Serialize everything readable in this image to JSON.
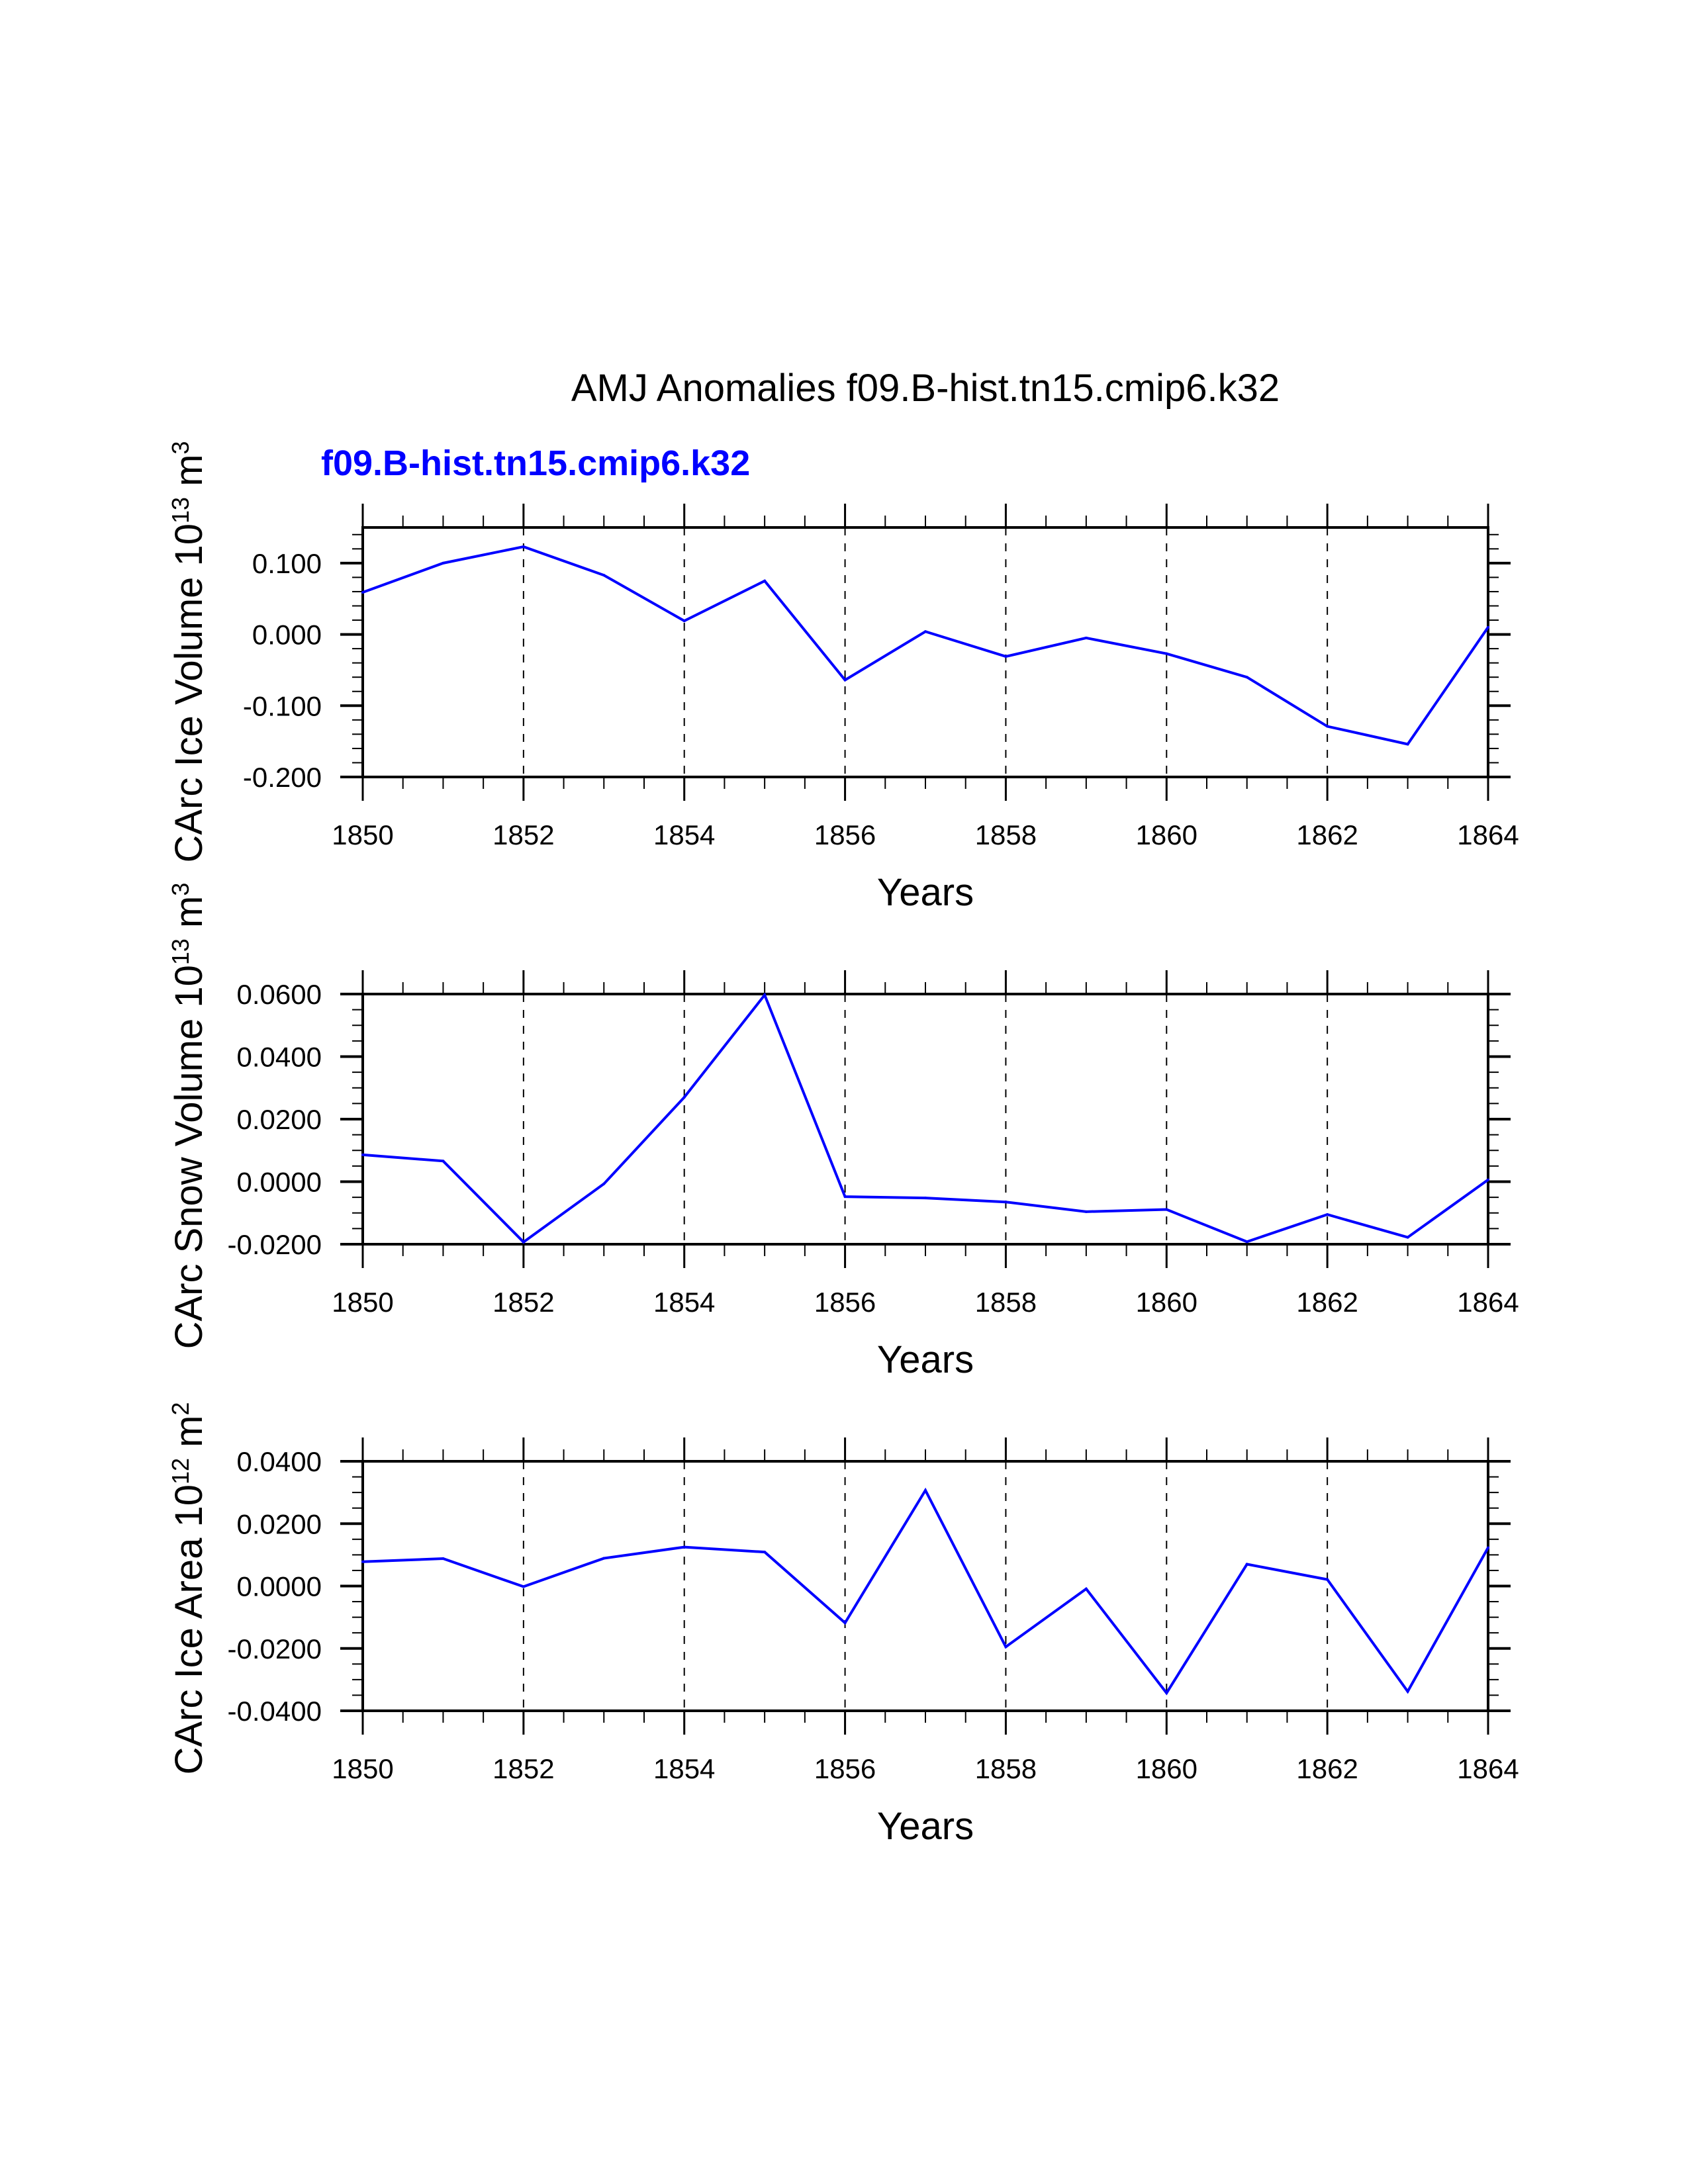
{
  "title": "AMJ Anomalies f09.B-hist.tn15.cmip6.k32",
  "subtitle": "f09.B-hist.tn15.cmip6.k32",
  "colors": {
    "series": "#0000ff",
    "subtitle": "#0000ff",
    "axis": "#000000"
  },
  "chart_data": [
    {
      "type": "line",
      "ylabel_parts": [
        "CArc Ice Volume 10",
        "13",
        " m",
        "3"
      ],
      "xlabel": "Years",
      "xlim": [
        1850,
        1864
      ],
      "ylim": [
        -0.2,
        0.15
      ],
      "xticks": [
        1850,
        1852,
        1854,
        1856,
        1858,
        1860,
        1862,
        1864
      ],
      "yticks": [
        0.1,
        0.0,
        -0.1,
        -0.2
      ],
      "ytick_labels": [
        "0.100",
        "0.000",
        "-0.100",
        "-0.200"
      ],
      "yminor_step": 0.02,
      "grid": "vertical dashed at major x ticks",
      "series": [
        {
          "name": "f09.B-hist.tn15.cmip6.k32",
          "x": [
            1850,
            1851,
            1852,
            1853,
            1854,
            1855,
            1856,
            1857,
            1858,
            1859,
            1860,
            1861,
            1862,
            1863,
            1864
          ],
          "values": [
            0.059,
            0.1,
            0.123,
            0.083,
            0.019,
            0.075,
            -0.064,
            0.004,
            -0.031,
            -0.005,
            -0.027,
            -0.06,
            -0.129,
            -0.154,
            0.01
          ]
        }
      ]
    },
    {
      "type": "line",
      "ylabel_parts": [
        "CArc Snow Volume 10",
        "13",
        " m",
        "3"
      ],
      "xlabel": "Years",
      "xlim": [
        1850,
        1864
      ],
      "ylim": [
        -0.02,
        0.06
      ],
      "xticks": [
        1850,
        1852,
        1854,
        1856,
        1858,
        1860,
        1862,
        1864
      ],
      "yticks": [
        0.06,
        0.04,
        0.02,
        0.0,
        -0.02
      ],
      "ytick_labels": [
        "0.0600",
        "0.0400",
        "0.0200",
        "0.0000",
        "-0.0200"
      ],
      "yminor_step": 0.005,
      "grid": "vertical dashed at major x ticks",
      "series": [
        {
          "name": "f09.B-hist.tn15.cmip6.k32",
          "x": [
            1850,
            1851,
            1852,
            1853,
            1854,
            1855,
            1856,
            1857,
            1858,
            1859,
            1860,
            1861,
            1862,
            1863,
            1864
          ],
          "values": [
            0.0086,
            0.0066,
            -0.0193,
            -0.0007,
            0.027,
            0.0597,
            -0.0048,
            -0.0052,
            -0.0065,
            -0.0096,
            -0.0089,
            -0.0192,
            -0.0105,
            -0.0178,
            0.0006
          ]
        }
      ]
    },
    {
      "type": "line",
      "ylabel_parts": [
        "CArc Ice Area 10",
        "12",
        " m",
        "2"
      ],
      "xlabel": "Years",
      "xlim": [
        1850,
        1864
      ],
      "ylim": [
        -0.04,
        0.04
      ],
      "xticks": [
        1850,
        1852,
        1854,
        1856,
        1858,
        1860,
        1862,
        1864
      ],
      "yticks": [
        0.04,
        0.02,
        0.0,
        -0.02,
        -0.04
      ],
      "ytick_labels": [
        "0.0400",
        "0.0200",
        "0.0000",
        "-0.0200",
        "-0.0400"
      ],
      "yminor_step": 0.005,
      "grid": "vertical dashed at major x ticks",
      "series": [
        {
          "name": "f09.B-hist.tn15.cmip6.k32",
          "x": [
            1850,
            1851,
            1852,
            1853,
            1854,
            1855,
            1856,
            1857,
            1858,
            1859,
            1860,
            1861,
            1862,
            1863,
            1864
          ],
          "values": [
            0.0078,
            0.0088,
            -0.0002,
            0.0089,
            0.0125,
            0.0109,
            -0.0118,
            0.0307,
            -0.0195,
            -0.0009,
            -0.0343,
            0.007,
            0.0021,
            -0.0338,
            0.0123
          ]
        }
      ]
    }
  ]
}
